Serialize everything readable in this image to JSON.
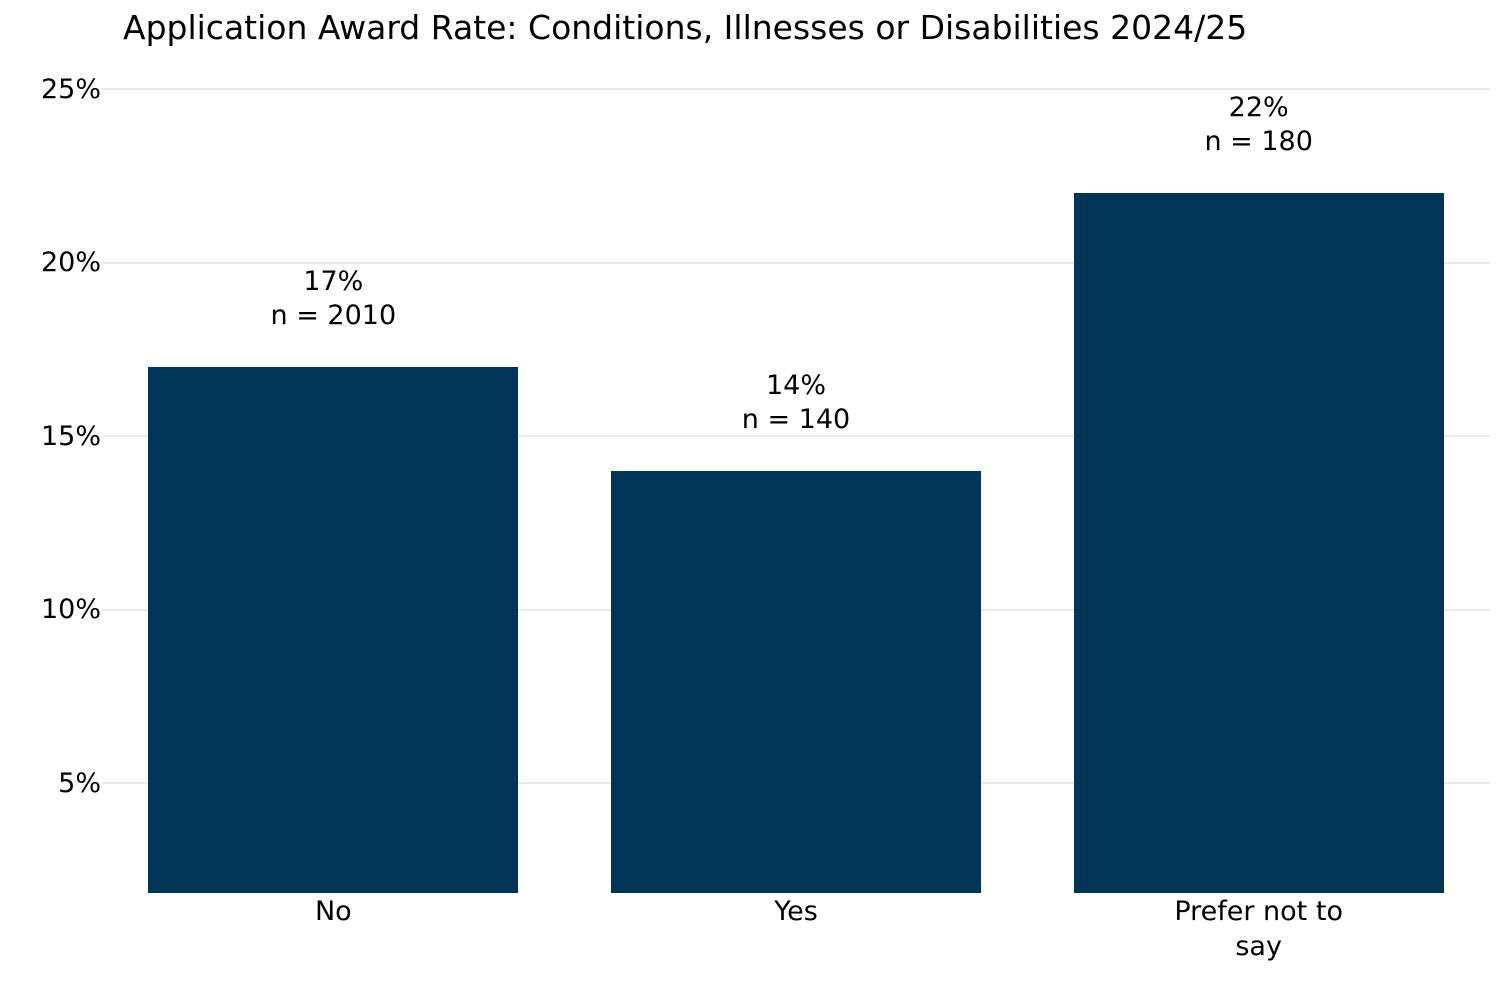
{
  "chart_data": {
    "type": "bar",
    "title": "Application Award Rate: Conditions, Illnesses or Disabilities 2024/25",
    "categories": [
      "No",
      "Yes",
      "Prefer not to say"
    ],
    "category_display_lines": [
      [
        "No"
      ],
      [
        "Yes"
      ],
      [
        "Prefer not to",
        "say"
      ]
    ],
    "values": [
      17,
      14,
      22
    ],
    "counts": [
      2010,
      140,
      180
    ],
    "value_labels": [
      "17%",
      "14%",
      "22%"
    ],
    "count_labels": [
      "n = 2010",
      "n = 140",
      "n = 180"
    ],
    "ylabel": "",
    "xlabel": "",
    "yticks": [
      5,
      10,
      15,
      20,
      25
    ],
    "ytick_labels": [
      "5%",
      "10%",
      "15%",
      "20%",
      "25%"
    ],
    "ylim": [
      1.8,
      25.4
    ],
    "grid": "horizontal",
    "legend_position": "none",
    "colors": {
      "bar": "#003558",
      "gridline": "#e9e9e9",
      "text": "#000000",
      "background": "#ffffff"
    }
  }
}
